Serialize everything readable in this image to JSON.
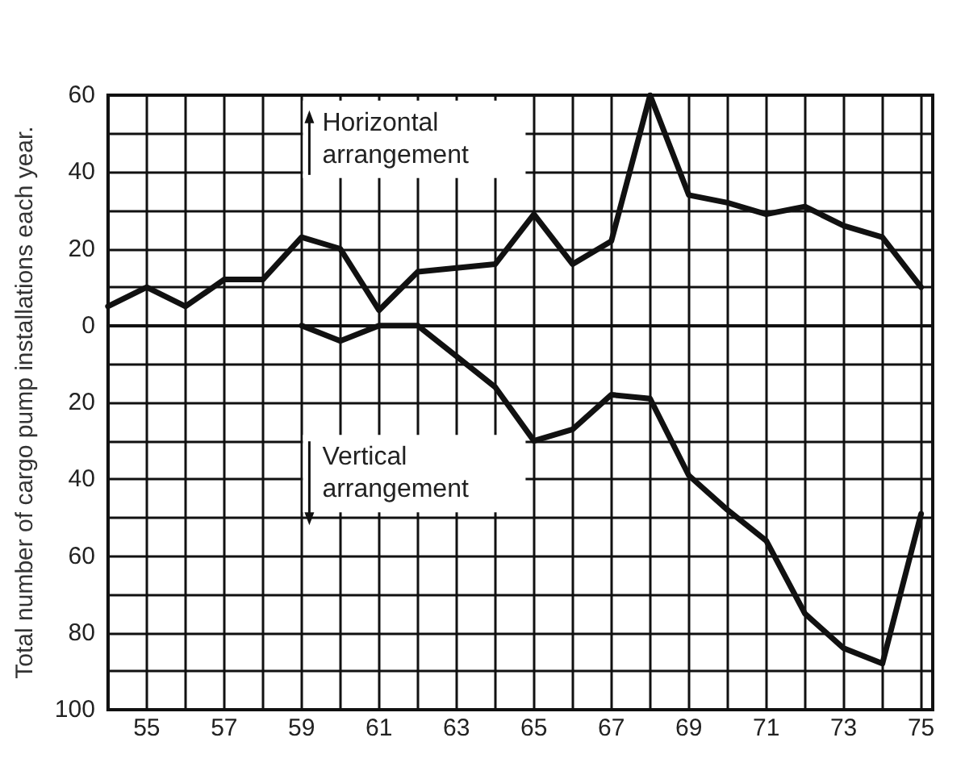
{
  "chart_data": {
    "type": "line",
    "ylabel": "Total number of cargo pump installations each year.",
    "x": [
      1954,
      1955,
      1956,
      1957,
      1958,
      1959,
      1960,
      1961,
      1962,
      1963,
      1964,
      1965,
      1966,
      1967,
      1968,
      1969,
      1970,
      1971,
      1972,
      1973,
      1974,
      1975
    ],
    "series": [
      {
        "name": "Horizontal arrangement",
        "color": "#111111",
        "values": [
          5,
          10,
          5,
          12,
          12,
          23,
          20,
          4,
          14,
          15,
          16,
          29,
          16,
          22,
          60,
          34,
          32,
          29,
          31,
          26,
          23,
          10
        ]
      },
      {
        "name": "Vertical arrangement",
        "color": "#111111",
        "values": [
          null,
          null,
          null,
          null,
          null,
          0,
          -4,
          0,
          0,
          -8,
          -16,
          -30,
          -27,
          -18,
          -19,
          -39,
          -48,
          -56,
          -75,
          -84,
          -88,
          -49
        ]
      }
    ],
    "xlim": [
      1954,
      1975.3
    ],
    "xticks": [
      {
        "value": 1954,
        "label": null
      },
      {
        "value": 1955,
        "label": "55"
      },
      {
        "value": 1956,
        "label": null
      },
      {
        "value": 1957,
        "label": "57"
      },
      {
        "value": 1958,
        "label": null
      },
      {
        "value": 1959,
        "label": "59"
      },
      {
        "value": 1960,
        "label": null
      },
      {
        "value": 1961,
        "label": "61"
      },
      {
        "value": 1962,
        "label": null
      },
      {
        "value": 1963,
        "label": "63"
      },
      {
        "value": 1964,
        "label": null
      },
      {
        "value": 1965,
        "label": "65"
      },
      {
        "value": 1966,
        "label": null
      },
      {
        "value": 1967,
        "label": "67"
      },
      {
        "value": 1968,
        "label": null
      },
      {
        "value": 1969,
        "label": "69"
      },
      {
        "value": 1970,
        "label": null
      },
      {
        "value": 1971,
        "label": "71"
      },
      {
        "value": 1972,
        "label": null
      },
      {
        "value": 1973,
        "label": "73"
      },
      {
        "value": 1974,
        "label": null
      },
      {
        "value": 1975,
        "label": "75"
      }
    ],
    "ylim": [
      -100,
      60
    ],
    "yticks": [
      {
        "value": -100,
        "label": "100"
      },
      {
        "value": -90,
        "label": null
      },
      {
        "value": -80,
        "label": "80"
      },
      {
        "value": -70,
        "label": null
      },
      {
        "value": -60,
        "label": "60"
      },
      {
        "value": -50,
        "label": null
      },
      {
        "value": -40,
        "label": "40"
      },
      {
        "value": -30,
        "label": null
      },
      {
        "value": -20,
        "label": "20"
      },
      {
        "value": -10,
        "label": null
      },
      0,
      {
        "value": 10,
        "label": null
      },
      20,
      {
        "value": 30,
        "label": null
      },
      40,
      {
        "value": 50,
        "label": null
      },
      60
    ],
    "grid": true,
    "legend": "top left",
    "marker": "none",
    "line_style": "solid"
  }
}
